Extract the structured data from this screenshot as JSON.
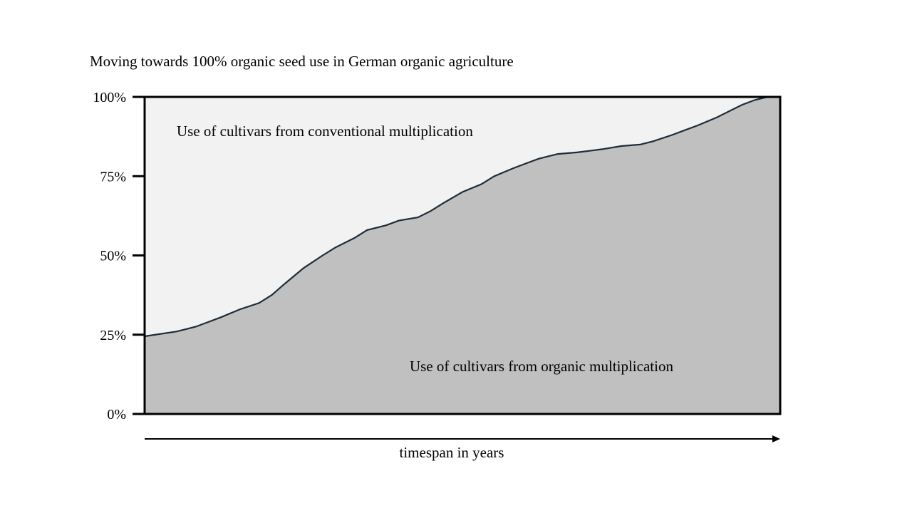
{
  "chart_data": {
    "type": "area",
    "title": "Moving towards 100% organic seed use in German organic agriculture",
    "xlabel": "timespan in years",
    "ylabel": "",
    "y_ticks": [
      "0%",
      "25%",
      "50%",
      "75%",
      "100%"
    ],
    "ylim": [
      0,
      100
    ],
    "xlim": [
      0,
      1
    ],
    "grid": false,
    "region_labels": {
      "upper": "Use of cultivars from conventional multiplication",
      "lower": "Use of cultivars from organic multiplication"
    },
    "series": [
      {
        "x": [
          0,
          0.05,
          0.08,
          0.1,
          0.12,
          0.15,
          0.18,
          0.2,
          0.22,
          0.25,
          0.28,
          0.3,
          0.33,
          0.35,
          0.38,
          0.4,
          0.43,
          0.45,
          0.47,
          0.5,
          0.53,
          0.55,
          0.58,
          0.6,
          0.62,
          0.65,
          0.68,
          0.7,
          0.72,
          0.75,
          0.78,
          0.8,
          0.83,
          0.85,
          0.87,
          0.9,
          0.92,
          0.94,
          0.96,
          0.98,
          1.0
        ],
        "y": [
          24.5,
          26,
          27.5,
          29,
          30.5,
          33,
          35,
          37.5,
          41,
          46,
          50,
          52.5,
          55.5,
          58,
          59.5,
          61,
          62,
          64,
          66.5,
          70,
          72.5,
          75,
          77.5,
          79,
          80.5,
          82,
          82.5,
          83,
          83.5,
          84.5,
          85,
          86,
          88,
          89.5,
          91,
          93.5,
          95.5,
          97.5,
          99,
          100,
          100
        ]
      }
    ],
    "colors": {
      "organic_fill": "#c0c0c0",
      "conventional_fill": "#f2f2f2",
      "boundary_line": "#1e2c38",
      "frame": "#000000"
    }
  }
}
